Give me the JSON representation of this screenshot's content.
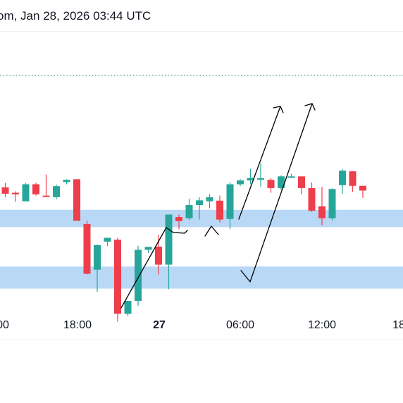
{
  "header": {
    "timestamp_text": "om, Jan 28, 2026 03:44 UTC"
  },
  "colors": {
    "up": "#26a69a",
    "down": "#ef3e4b",
    "zone": "#b9d8f6",
    "drawing": "#000000",
    "dotted_line": "#3a9d8f"
  },
  "chart_data": {
    "type": "candlestick",
    "x_ticks": [
      {
        "label": "00",
        "bold": false
      },
      {
        "label": "18:00",
        "bold": false
      },
      {
        "label": "27",
        "bold": true
      },
      {
        "label": "06:00",
        "bold": false
      },
      {
        "label": "12:00",
        "bold": false
      },
      {
        "label": "18",
        "bold": false
      }
    ],
    "candles": [
      {
        "o": 0.6,
        "h": 2.0,
        "l": -2.5,
        "c": -1.4
      },
      {
        "o": -1.1,
        "h": -0.6,
        "l": -4.0,
        "c": -1.6
      },
      {
        "o": -3.8,
        "h": 2.0,
        "l": -3.8,
        "c": 1.6
      },
      {
        "o": 1.6,
        "h": 2.1,
        "l": -2.0,
        "c": -1.6
      },
      {
        "o": -2.0,
        "h": 4.7,
        "l": -2.0,
        "c": -2.2
      },
      {
        "o": -2.5,
        "h": 1.5,
        "l": -3.2,
        "c": 1.0
      },
      {
        "o": 2.3,
        "h": 3.2,
        "l": 1.6,
        "c": 3.0
      },
      {
        "o": 3.2,
        "h": 3.2,
        "l": -10.0,
        "c": -10.0
      },
      {
        "o": -11.0,
        "h": -10.0,
        "l": -27.0,
        "c": -26.8
      },
      {
        "o": -25.5,
        "h": -17.5,
        "l": -32.5,
        "c": -17.7
      },
      {
        "o": -16.6,
        "h": -15.4,
        "l": -18.0,
        "c": -15.4
      },
      {
        "o": -16.0,
        "h": -15.4,
        "l": -42.0,
        "c": -39.5
      },
      {
        "o": -39.5,
        "h": -35.4,
        "l": -40.2,
        "c": -35.4
      },
      {
        "o": -35.4,
        "h": -17.9,
        "l": -37.0,
        "c": -19.2
      },
      {
        "o": -19.2,
        "h": -18.2,
        "l": -20.2,
        "c": -18.3
      },
      {
        "o": -18.2,
        "h": -14.5,
        "l": -27.0,
        "c": -23.9
      },
      {
        "o": -23.9,
        "h": -8.0,
        "l": -31.7,
        "c": -8.0
      },
      {
        "o": -8.8,
        "h": -8.0,
        "l": -12.7,
        "c": -10.1
      },
      {
        "o": -9.2,
        "h": -3.0,
        "l": -9.8,
        "c": -5.0
      },
      {
        "o": -5.0,
        "h": -2.5,
        "l": -9.6,
        "c": -3.5
      },
      {
        "o": -3.8,
        "h": -1.5,
        "l": -6.0,
        "c": -2.5
      },
      {
        "o": -3.6,
        "h": -2.0,
        "l": -10.5,
        "c": -9.6
      },
      {
        "o": -9.4,
        "h": 2.3,
        "l": -12.6,
        "c": 1.6
      },
      {
        "o": 1.6,
        "h": 3.2,
        "l": 1.0,
        "c": 2.8
      },
      {
        "o": 2.8,
        "h": 6.5,
        "l": 1.6,
        "c": 3.6
      },
      {
        "o": 3.5,
        "h": 8.2,
        "l": 0.9,
        "c": 3.5
      },
      {
        "o": 3.0,
        "h": 3.5,
        "l": -1.1,
        "c": 0.4
      },
      {
        "o": 0.4,
        "h": 4.4,
        "l": -0.3,
        "c": 4.1
      },
      {
        "o": 4.1,
        "h": 4.9,
        "l": 3.6,
        "c": 4.1
      },
      {
        "o": 4.1,
        "h": 4.1,
        "l": -1.6,
        "c": 0.4
      },
      {
        "o": 0.4,
        "h": 2.2,
        "l": -7.2,
        "c": -6.8
      },
      {
        "o": -5.4,
        "h": 0.7,
        "l": -11.4,
        "c": -9.2
      },
      {
        "o": -9.2,
        "h": 0.3,
        "l": -9.9,
        "c": 0.1
      },
      {
        "o": 1.3,
        "h": 6.4,
        "l": -1.4,
        "c": 5.9
      },
      {
        "o": 5.7,
        "h": 5.7,
        "l": -0.8,
        "c": 1.1
      },
      {
        "o": 1.1,
        "h": 1.1,
        "l": -2.7,
        "c": -0.4
      }
    ],
    "zones": [
      {
        "from": -6.5,
        "to": -12.0
      },
      {
        "from": -24.5,
        "to": -31.5
      }
    ],
    "ylim": [
      -45.0,
      50.0
    ],
    "grid": false
  }
}
